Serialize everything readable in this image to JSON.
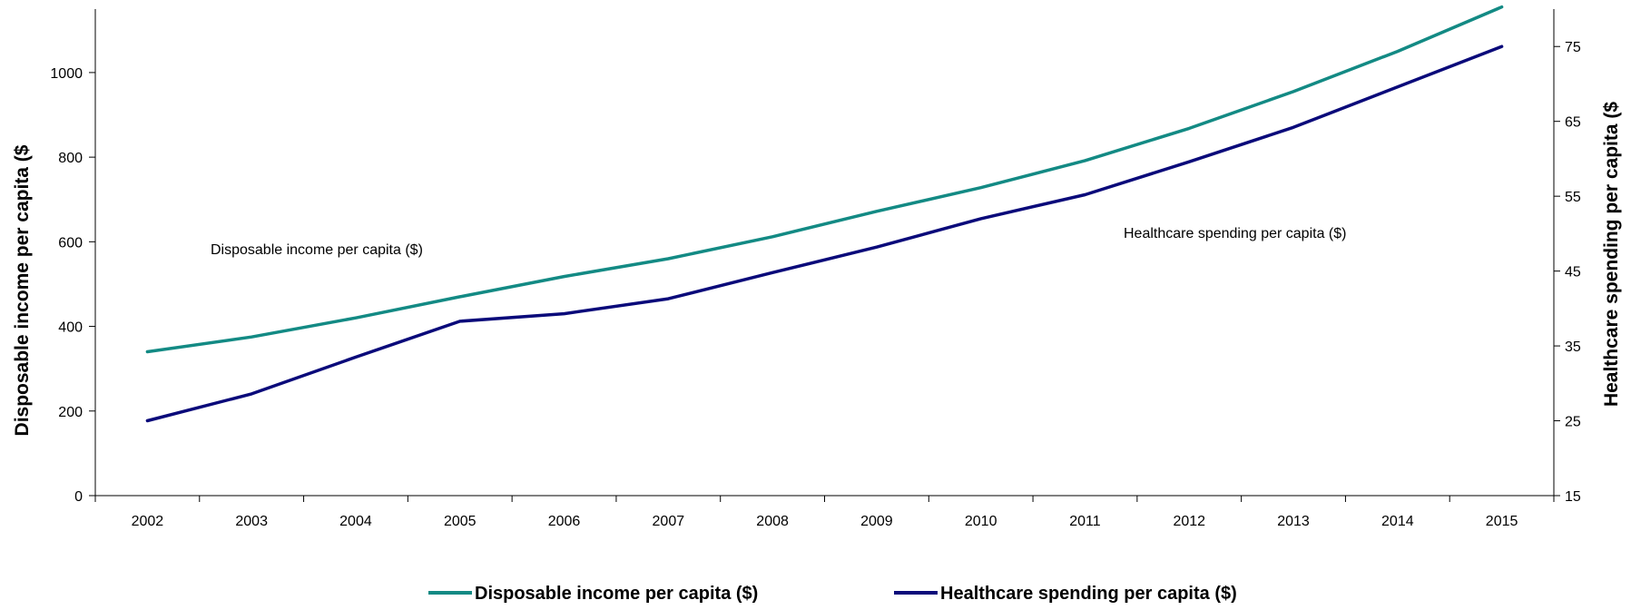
{
  "chart_data": {
    "type": "line",
    "x": [
      "2002",
      "2003",
      "2004",
      "2005",
      "2006",
      "2007",
      "2008",
      "2009",
      "2010",
      "2011",
      "2012",
      "2013",
      "2014",
      "2015"
    ],
    "left_axis": {
      "label": "Disposable income per capita ($",
      "range": [
        0,
        1150
      ],
      "ticks": [
        "0",
        "200",
        "400",
        "600",
        "800",
        "1000"
      ]
    },
    "right_axis": {
      "label": "Healthcare spending per capita ($",
      "range": [
        15,
        80
      ],
      "ticks": [
        "15",
        "25",
        "35",
        "45",
        "55",
        "65",
        "75"
      ]
    },
    "series": [
      {
        "name": "Disposable income per capita ($)",
        "axis": "left",
        "color": "#138a84",
        "values": [
          340,
          375,
          420,
          470,
          518,
          560,
          612,
          672,
          728,
          792,
          868,
          955,
          1050,
          1155
        ]
      },
      {
        "name": "Healthcare spending per capita ($)",
        "axis": "right",
        "color": "#0a0a7a",
        "values": [
          25,
          28.6,
          33.5,
          38.3,
          39.3,
          41.3,
          44.8,
          48.2,
          52.0,
          55.2,
          59.6,
          64.2,
          69.6,
          75.0
        ]
      }
    ],
    "annotations": [
      {
        "text": "Disposable income per capita ($)",
        "series": 0
      },
      {
        "text": "Healthcare spending per capita ($)",
        "series": 1
      }
    ],
    "legend_placement": "bottom",
    "grid": false
  }
}
